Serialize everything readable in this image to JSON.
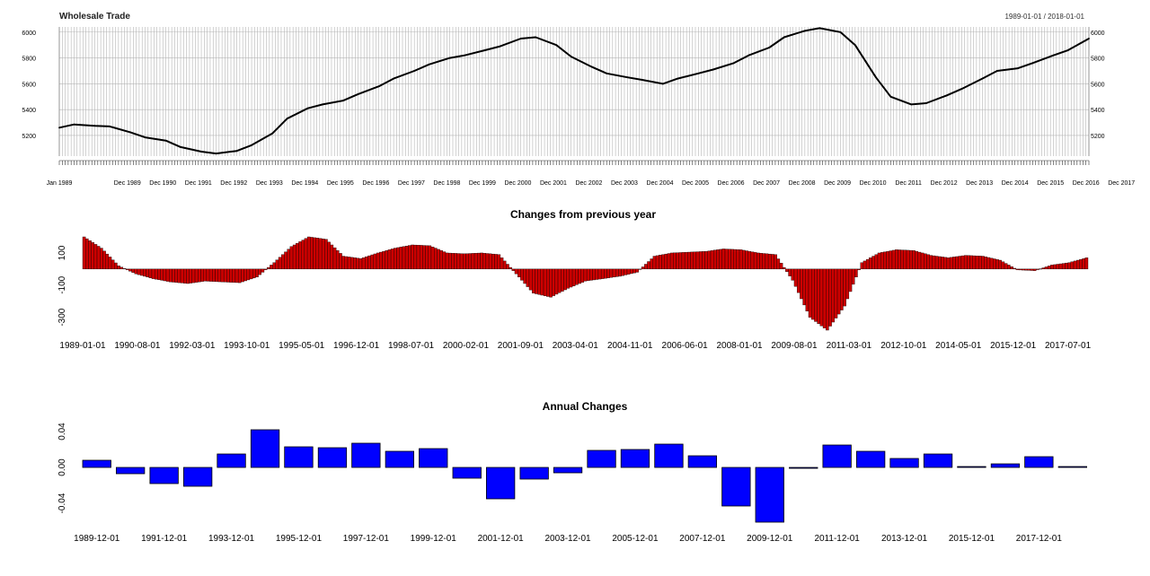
{
  "chart_data": [
    {
      "type": "line",
      "title": "Wholesale Trade",
      "date_range": "1989-01-01 / 2018-01-01",
      "xlabel": "",
      "ylabel": "",
      "ylim": [
        5040,
        6040
      ],
      "y_ticks": [
        5200,
        5400,
        5600,
        5800,
        6000
      ],
      "x_tick_labels": [
        "Jan 1989",
        "Dec 1989",
        "Dec 1990",
        "Dec 1991",
        "Dec 1992",
        "Dec 1993",
        "Dec 1994",
        "Dec 1995",
        "Dec 1996",
        "Dec 1997",
        "Dec 1998",
        "Dec 1999",
        "Dec 2000",
        "Dec 2001",
        "Dec 2002",
        "Dec 2003",
        "Dec 2004",
        "Dec 2005",
        "Dec 2006",
        "Dec 2007",
        "Dec 2008",
        "Dec 2009",
        "Dec 2010",
        "Dec 2011",
        "Dec 2012",
        "Dec 2013",
        "Dec 2014",
        "Dec 2015",
        "Dec 2016",
        "Dec 2017"
      ],
      "grid": true,
      "series": [
        {
          "x": [
            "1989-01-01",
            "1989-06-01",
            "1990-01-01",
            "1990-06-01",
            "1991-01-01",
            "1991-06-01",
            "1992-01-01",
            "1992-06-01",
            "1993-01-01",
            "1993-06-01",
            "1994-01-01",
            "1994-06-01",
            "1995-01-01",
            "1995-06-01",
            "1996-01-01",
            "1996-06-01",
            "1997-01-01",
            "1997-06-01",
            "1998-01-01",
            "1998-06-01",
            "1999-01-01",
            "1999-06-01",
            "2000-01-01",
            "2000-06-01",
            "2001-01-01",
            "2001-06-01",
            "2002-01-01",
            "2002-06-01",
            "2003-01-01",
            "2003-06-01",
            "2004-01-01",
            "2004-06-01",
            "2005-01-01",
            "2005-06-01",
            "2006-01-01",
            "2006-06-01",
            "2007-01-01",
            "2007-06-01",
            "2008-01-01",
            "2008-06-01",
            "2009-01-01",
            "2009-06-01",
            "2010-01-01",
            "2010-06-01",
            "2011-01-01",
            "2011-06-01",
            "2012-01-01",
            "2012-06-01",
            "2013-01-01",
            "2013-06-01",
            "2014-01-01",
            "2014-06-01",
            "2015-01-01",
            "2015-06-01",
            "2016-01-01",
            "2016-06-01",
            "2017-01-01",
            "2017-06-01",
            "2018-01-01"
          ],
          "y": [
            5260,
            5285,
            5275,
            5270,
            5225,
            5185,
            5160,
            5110,
            5075,
            5060,
            5080,
            5125,
            5215,
            5330,
            5410,
            5440,
            5470,
            5520,
            5580,
            5640,
            5700,
            5750,
            5800,
            5820,
            5860,
            5890,
            5950,
            5960,
            5900,
            5810,
            5730,
            5680,
            5650,
            5630,
            5600,
            5640,
            5680,
            5710,
            5760,
            5820,
            5880,
            5960,
            6010,
            6030,
            6000,
            5900,
            5650,
            5500,
            5440,
            5450,
            5510,
            5560,
            5640,
            5700,
            5720,
            5760,
            5820,
            5860,
            5950
          ]
        }
      ]
    },
    {
      "type": "bar",
      "title": "Changes from previous year",
      "xlabel": "",
      "ylabel": "",
      "ylim": [
        -380,
        200
      ],
      "y_ticks": [
        -300,
        -100,
        100
      ],
      "x_tick_labels": [
        "1989-01-01",
        "1990-08-01",
        "1992-03-01",
        "1993-10-01",
        "1995-05-01",
        "1996-12-01",
        "1998-07-01",
        "2000-02-01",
        "2001-09-01",
        "2003-04-01",
        "2004-11-01",
        "2006-06-01",
        "2008-01-01",
        "2009-08-01",
        "2011-03-01",
        "2012-10-01",
        "2014-05-01",
        "2015-12-01",
        "2017-07-01"
      ],
      "color": "#cc0000",
      "series": [
        {
          "x": [
            "1989-01-01",
            "1989-07-01",
            "1990-01-01",
            "1990-07-01",
            "1991-01-01",
            "1991-07-01",
            "1992-01-01",
            "1992-07-01",
            "1993-01-01",
            "1993-07-01",
            "1994-01-01",
            "1994-07-01",
            "1995-01-01",
            "1995-07-01",
            "1996-01-01",
            "1996-07-01",
            "1997-01-01",
            "1997-07-01",
            "1998-01-01",
            "1998-07-01",
            "1999-01-01",
            "1999-07-01",
            "2000-01-01",
            "2000-07-01",
            "2001-01-01",
            "2001-07-01",
            "2002-01-01",
            "2002-07-01",
            "2003-01-01",
            "2003-07-01",
            "2004-01-01",
            "2004-07-01",
            "2005-01-01",
            "2005-07-01",
            "2006-01-01",
            "2006-07-01",
            "2007-01-01",
            "2007-07-01",
            "2008-01-01",
            "2008-07-01",
            "2009-01-01",
            "2009-07-01",
            "2010-01-01",
            "2010-07-01",
            "2011-01-01",
            "2011-07-01",
            "2012-01-01",
            "2012-07-01",
            "2013-01-01",
            "2013-07-01",
            "2014-01-01",
            "2014-07-01",
            "2015-01-01",
            "2015-07-01",
            "2016-01-01",
            "2016-07-01",
            "2017-01-01",
            "2017-07-01",
            "2018-01-01"
          ],
          "y": [
            200,
            130,
            20,
            -30,
            -60,
            -80,
            -90,
            -75,
            -80,
            -85,
            -50,
            40,
            140,
            200,
            185,
            80,
            65,
            100,
            130,
            150,
            145,
            100,
            95,
            100,
            90,
            -30,
            -150,
            -175,
            -120,
            -75,
            -60,
            -45,
            -20,
            80,
            100,
            105,
            110,
            125,
            120,
            100,
            90,
            -70,
            -300,
            -380,
            -230,
            40,
            100,
            120,
            115,
            85,
            70,
            85,
            80,
            55,
            -5,
            -10,
            25,
            40,
            70
          ]
        }
      ]
    },
    {
      "type": "bar",
      "title": "Annual Changes",
      "xlabel": "",
      "ylabel": "",
      "ylim": [
        -0.06,
        0.045
      ],
      "y_ticks": [
        -0.04,
        0.0,
        0.04
      ],
      "y_tick_labels": [
        "-0.04",
        "0.00",
        "0.04"
      ],
      "categories": [
        "1989-12-01",
        "1990-12-01",
        "1991-12-01",
        "1992-12-01",
        "1993-12-01",
        "1994-12-01",
        "1995-12-01",
        "1996-12-01",
        "1997-12-01",
        "1998-12-01",
        "1999-12-01",
        "2000-12-01",
        "2001-12-01",
        "2002-12-01",
        "2003-12-01",
        "2004-12-01",
        "2005-12-01",
        "2006-12-01",
        "2007-12-01",
        "2008-12-01",
        "2009-12-01",
        "2010-12-01",
        "2011-12-01",
        "2012-12-01",
        "2013-12-01",
        "2014-12-01",
        "2015-12-01",
        "2016-12-01",
        "2017-12-01",
        "2018-12-01"
      ],
      "x_tick_labels": [
        "1989-12-01",
        "1991-12-01",
        "1993-12-01",
        "1995-12-01",
        "1997-12-01",
        "1999-12-01",
        "2001-12-01",
        "2003-12-01",
        "2005-12-01",
        "2007-12-01",
        "2009-12-01",
        "2011-12-01",
        "2013-12-01",
        "2015-12-01",
        "2017-12-01"
      ],
      "values": [
        0.008,
        -0.007,
        -0.018,
        -0.021,
        0.015,
        0.042,
        0.023,
        0.022,
        0.027,
        0.018,
        0.021,
        -0.012,
        -0.035,
        -0.013,
        -0.006,
        0.019,
        0.02,
        0.026,
        0.013,
        -0.043,
        -0.061,
        0.0,
        0.025,
        0.018,
        0.01,
        0.015,
        0.001,
        0.004,
        0.012,
        0.001
      ],
      "color": "#0000ff"
    }
  ]
}
